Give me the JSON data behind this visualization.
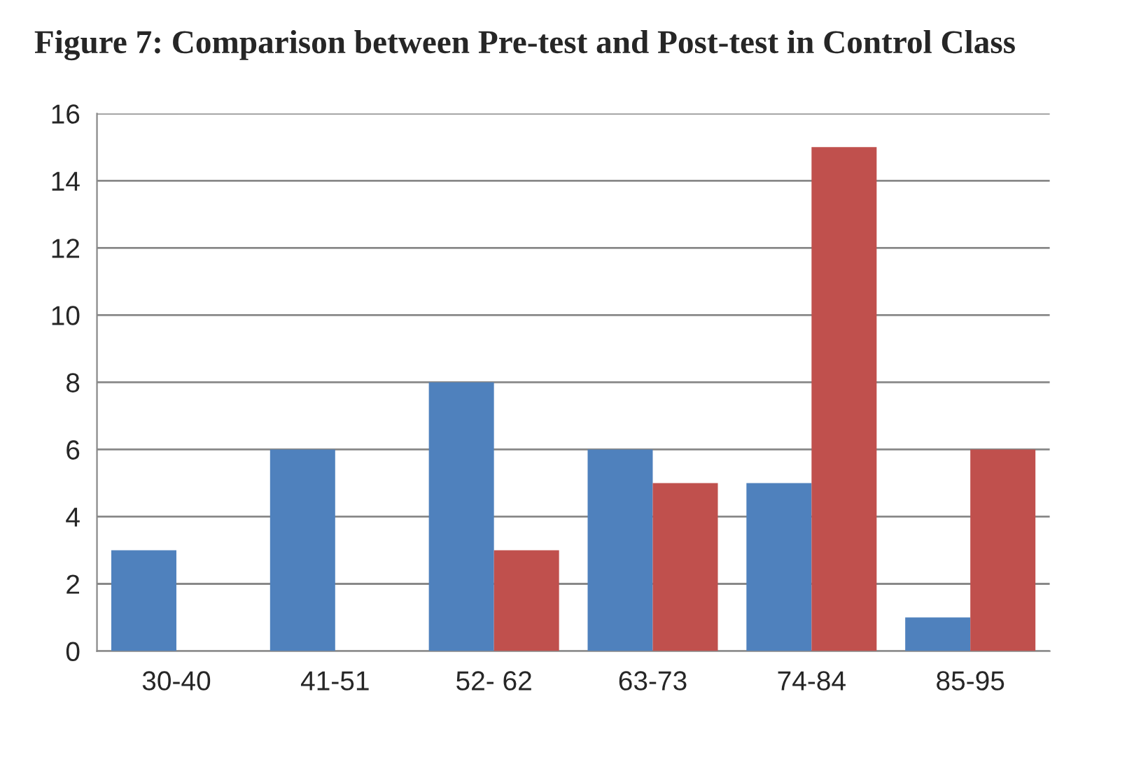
{
  "chart_data": {
    "type": "bar",
    "title": "Figure 7: Comparison between Pre-test and Post-test in Control Class",
    "categories": [
      "30-40",
      "41-51",
      "52- 62",
      "63-73",
      "74-84",
      "85-95"
    ],
    "series": [
      {
        "color": "#4f81bd",
        "values": [
          3,
          6,
          8,
          6,
          5,
          1
        ]
      },
      {
        "color": "#c0504d",
        "values": [
          null,
          null,
          3,
          5,
          15,
          6
        ]
      }
    ],
    "ylim": [
      0,
      16
    ],
    "yticks": [
      0,
      2,
      4,
      6,
      8,
      10,
      12,
      14,
      16
    ],
    "grid": "y",
    "legend": false
  }
}
